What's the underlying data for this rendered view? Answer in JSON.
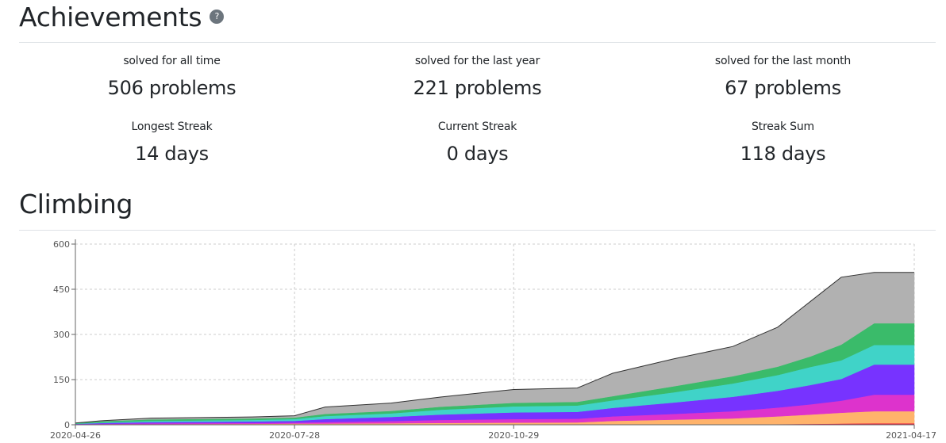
{
  "achievements": {
    "title": "Achievements",
    "help_icon": "?",
    "stats": [
      {
        "label": "solved for all time",
        "value": "506 problems"
      },
      {
        "label": "solved for the last year",
        "value": "221 problems"
      },
      {
        "label": "solved for the last month",
        "value": "67 problems"
      },
      {
        "label": "Longest Streak",
        "value": "14 days"
      },
      {
        "label": "Current Streak",
        "value": "0 days"
      },
      {
        "label": "Streak Sum",
        "value": "118 days"
      }
    ]
  },
  "climbing": {
    "title": "Climbing"
  },
  "chart_data": {
    "type": "area",
    "stacked": true,
    "title": "",
    "xlabel": "",
    "ylabel": "",
    "ylim": [
      0,
      600
    ],
    "yticks": [
      "0",
      "150",
      "300",
      "450",
      "600"
    ],
    "xticks": [
      "2020-04-26",
      "2020-07-28",
      "2020-10-29",
      "2021-04-17"
    ],
    "grid": true,
    "legend": "none",
    "x": [
      "2020-04-26",
      "2020-05-08",
      "2020-05-28",
      "2020-07-10",
      "2020-07-28",
      "2020-08-10",
      "2020-09-07",
      "2020-09-28",
      "2020-10-29",
      "2020-11-25",
      "2020-12-10",
      "2021-01-05",
      "2021-01-30",
      "2021-02-18",
      "2021-03-04",
      "2021-03-17",
      "2021-03-31",
      "2021-04-17"
    ],
    "series": [
      {
        "color": "#e8233f",
        "values": [
          0,
          0,
          1,
          1,
          1,
          1,
          1,
          1,
          1,
          1,
          1,
          1,
          1,
          2,
          3,
          4,
          5,
          5
        ]
      },
      {
        "color": "#ffb36b",
        "values": [
          1,
          1,
          1,
          2,
          3,
          3,
          4,
          5,
          6,
          7,
          12,
          16,
          20,
          26,
          31,
          36,
          40,
          40
        ]
      },
      {
        "color": "#dd33cc",
        "values": [
          1,
          2,
          3,
          3,
          3,
          5,
          7,
          10,
          12,
          12,
          15,
          19,
          24,
          29,
          34,
          40,
          55,
          55
        ]
      },
      {
        "color": "#7733ff",
        "values": [
          1,
          3,
          4,
          5,
          6,
          10,
          14,
          18,
          22,
          23,
          28,
          38,
          48,
          56,
          64,
          72,
          100,
          100
        ]
      },
      {
        "color": "#40d3c8",
        "values": [
          1,
          2,
          4,
          5,
          6,
          10,
          12,
          16,
          20,
          21,
          25,
          34,
          44,
          52,
          60,
          62,
          65,
          65
        ]
      },
      {
        "color": "#3abb6a",
        "values": [
          2,
          4,
          5,
          5,
          5,
          7,
          8,
          10,
          12,
          12,
          14,
          20,
          24,
          28,
          35,
          52,
          72,
          72
        ]
      },
      {
        "color": "#b1b1b1",
        "values": [
          0,
          2,
          4,
          5,
          6,
          23,
          26,
          32,
          44,
          46,
          76,
          91,
          99,
          131,
          183,
          224,
          169,
          169
        ]
      }
    ],
    "total_color": "#333333"
  }
}
